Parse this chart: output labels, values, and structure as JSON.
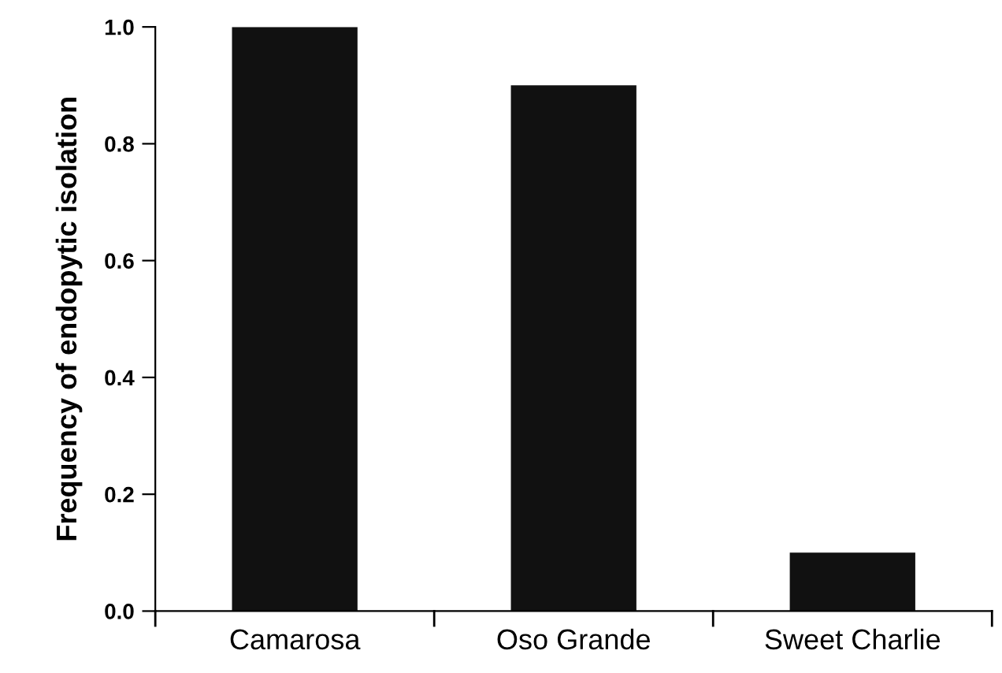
{
  "chart_data": {
    "type": "bar",
    "ylabel": "Frequency of endopytic isolation",
    "categories": [
      "Camarosa",
      "Oso Grande",
      "Sweet Charlie"
    ],
    "values": [
      1.0,
      0.9,
      0.1
    ],
    "color": "#111111",
    "ylim": [
      0,
      1.0
    ],
    "yticks": [
      {
        "value": 0,
        "label": "0.0"
      },
      {
        "value": 0.2,
        "label": "0.2"
      },
      {
        "value": 0.4,
        "label": "0.4"
      },
      {
        "value": 0.6,
        "label": "0.6"
      },
      {
        "value": 0.8,
        "label": "0.8"
      },
      {
        "value": 1.0,
        "label": "1.0"
      }
    ],
    "grid": false,
    "legend": false
  }
}
